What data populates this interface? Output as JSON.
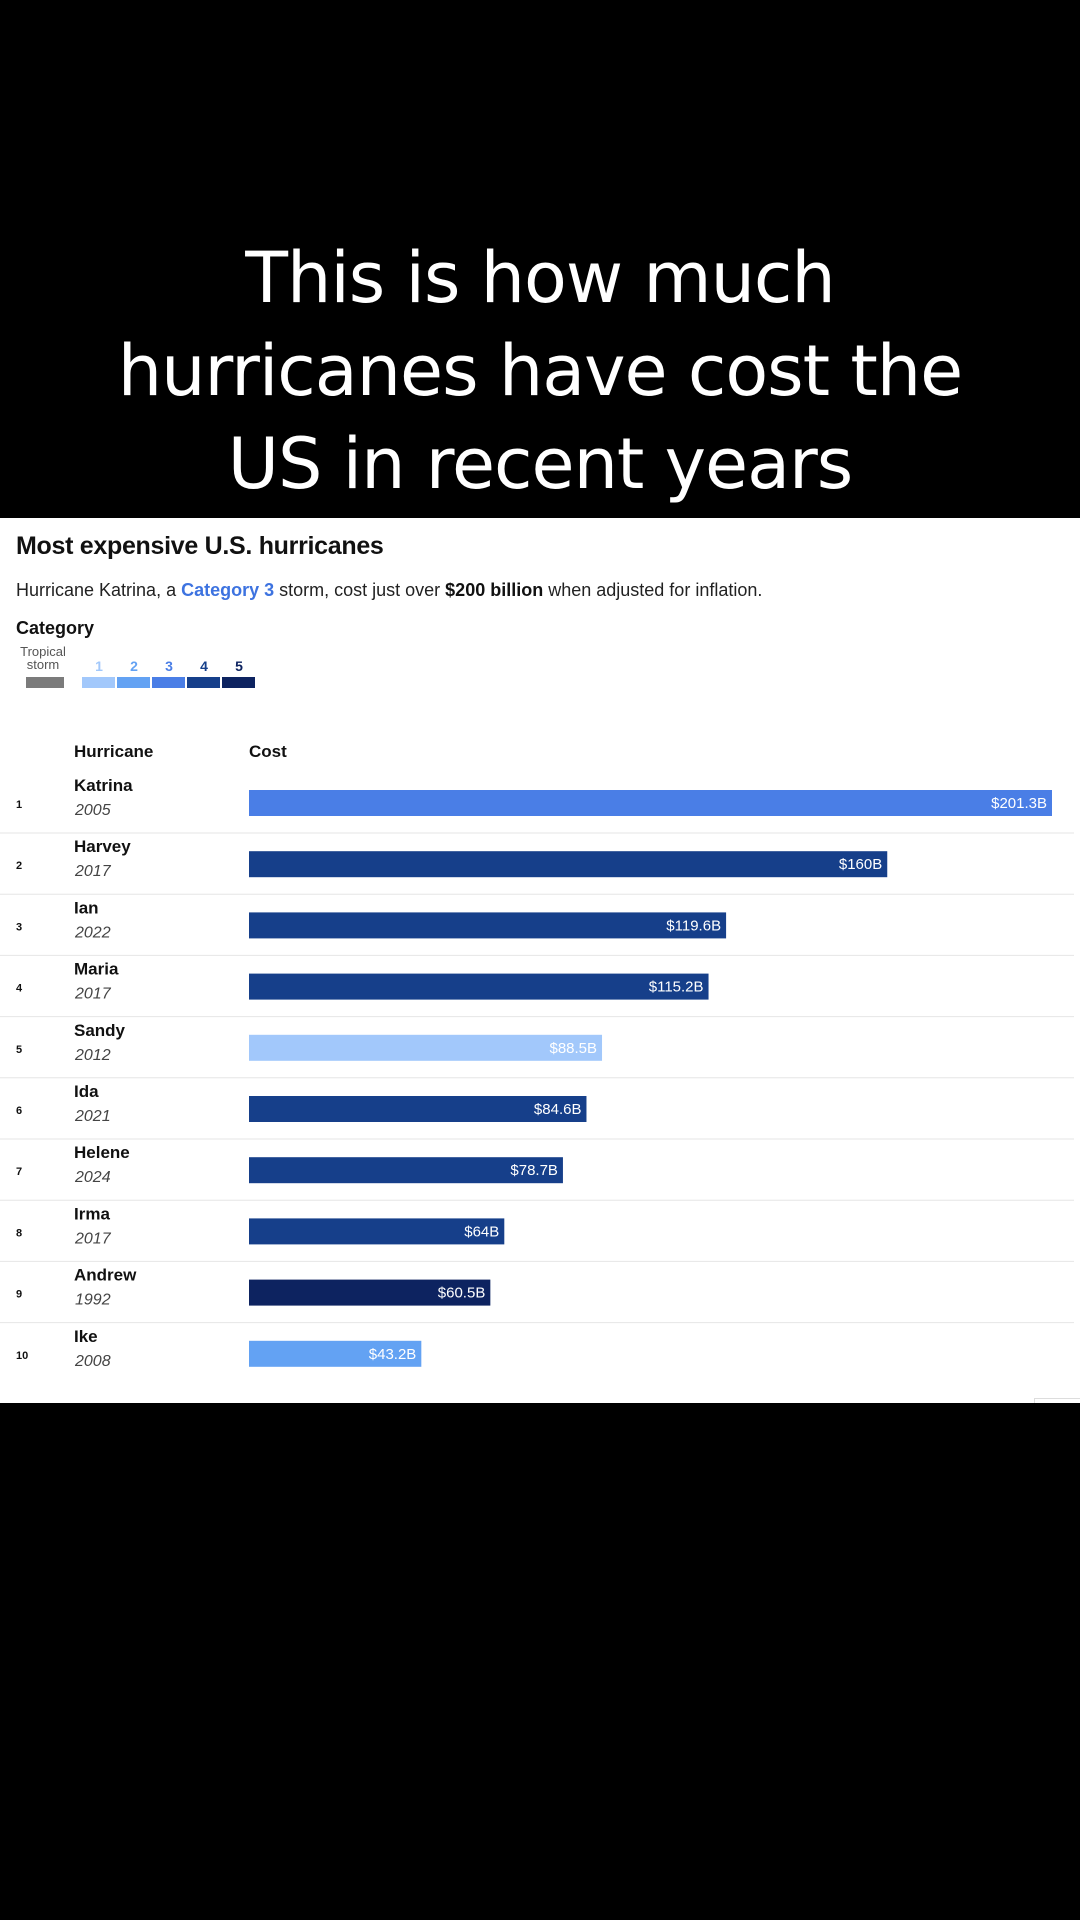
{
  "caption": {
    "lines": [
      "This is how much",
      "hurricanes have cost the",
      "US in recent years"
    ]
  },
  "chart_data": {
    "type": "bar",
    "orientation": "horizontal",
    "title": "Most expensive U.S. hurricanes",
    "subtitle": {
      "prefix": "Hurricane Katrina, a ",
      "category_link": "Category 3",
      "middle": " storm, cost just over ",
      "amount": "$200 billion",
      "suffix": " when adjusted for inflation."
    },
    "legend": {
      "title": "Category",
      "tropical_storm_label": [
        "Tropical",
        "storm"
      ],
      "tropical_storm_color": "#7b7b7b",
      "categories": [
        {
          "label": "1",
          "color": "#a2c8fb"
        },
        {
          "label": "2",
          "color": "#63a2f3"
        },
        {
          "label": "3",
          "color": "#4a7ee6"
        },
        {
          "label": "4",
          "color": "#163f8a"
        },
        {
          "label": "5",
          "color": "#0d2360"
        }
      ]
    },
    "column_headers": {
      "hurricane": "Hurricane",
      "cost": "Cost"
    },
    "unit": "billion USD",
    "xlim": [
      0,
      201.3
    ],
    "rows": [
      {
        "rank": "1",
        "name": "Katrina",
        "year": "2005",
        "value": 201.3,
        "label": "$201.3B",
        "category": "3"
      },
      {
        "rank": "2",
        "name": "Harvey",
        "year": "2017",
        "value": 160,
        "label": "$160B",
        "category": "4"
      },
      {
        "rank": "3",
        "name": "Ian",
        "year": "2022",
        "value": 119.6,
        "label": "$119.6B",
        "category": "4"
      },
      {
        "rank": "4",
        "name": "Maria",
        "year": "2017",
        "value": 115.2,
        "label": "$115.2B",
        "category": "4"
      },
      {
        "rank": "5",
        "name": "Sandy",
        "year": "2012",
        "value": 88.5,
        "label": "$88.5B",
        "category": "1"
      },
      {
        "rank": "6",
        "name": "Ida",
        "year": "2021",
        "value": 84.6,
        "label": "$84.6B",
        "category": "4"
      },
      {
        "rank": "7",
        "name": "Helene",
        "year": "2024",
        "value": 78.7,
        "label": "$78.7B",
        "category": "4"
      },
      {
        "rank": "8",
        "name": "Irma",
        "year": "2017",
        "value": 64,
        "label": "$64B",
        "category": "4"
      },
      {
        "rank": "9",
        "name": "Andrew",
        "year": "1992",
        "value": 60.5,
        "label": "$60.5B",
        "category": "5"
      },
      {
        "rank": "10",
        "name": "Ike",
        "year": "2008",
        "value": 43.2,
        "label": "$43.2B",
        "category": "2"
      }
    ]
  }
}
